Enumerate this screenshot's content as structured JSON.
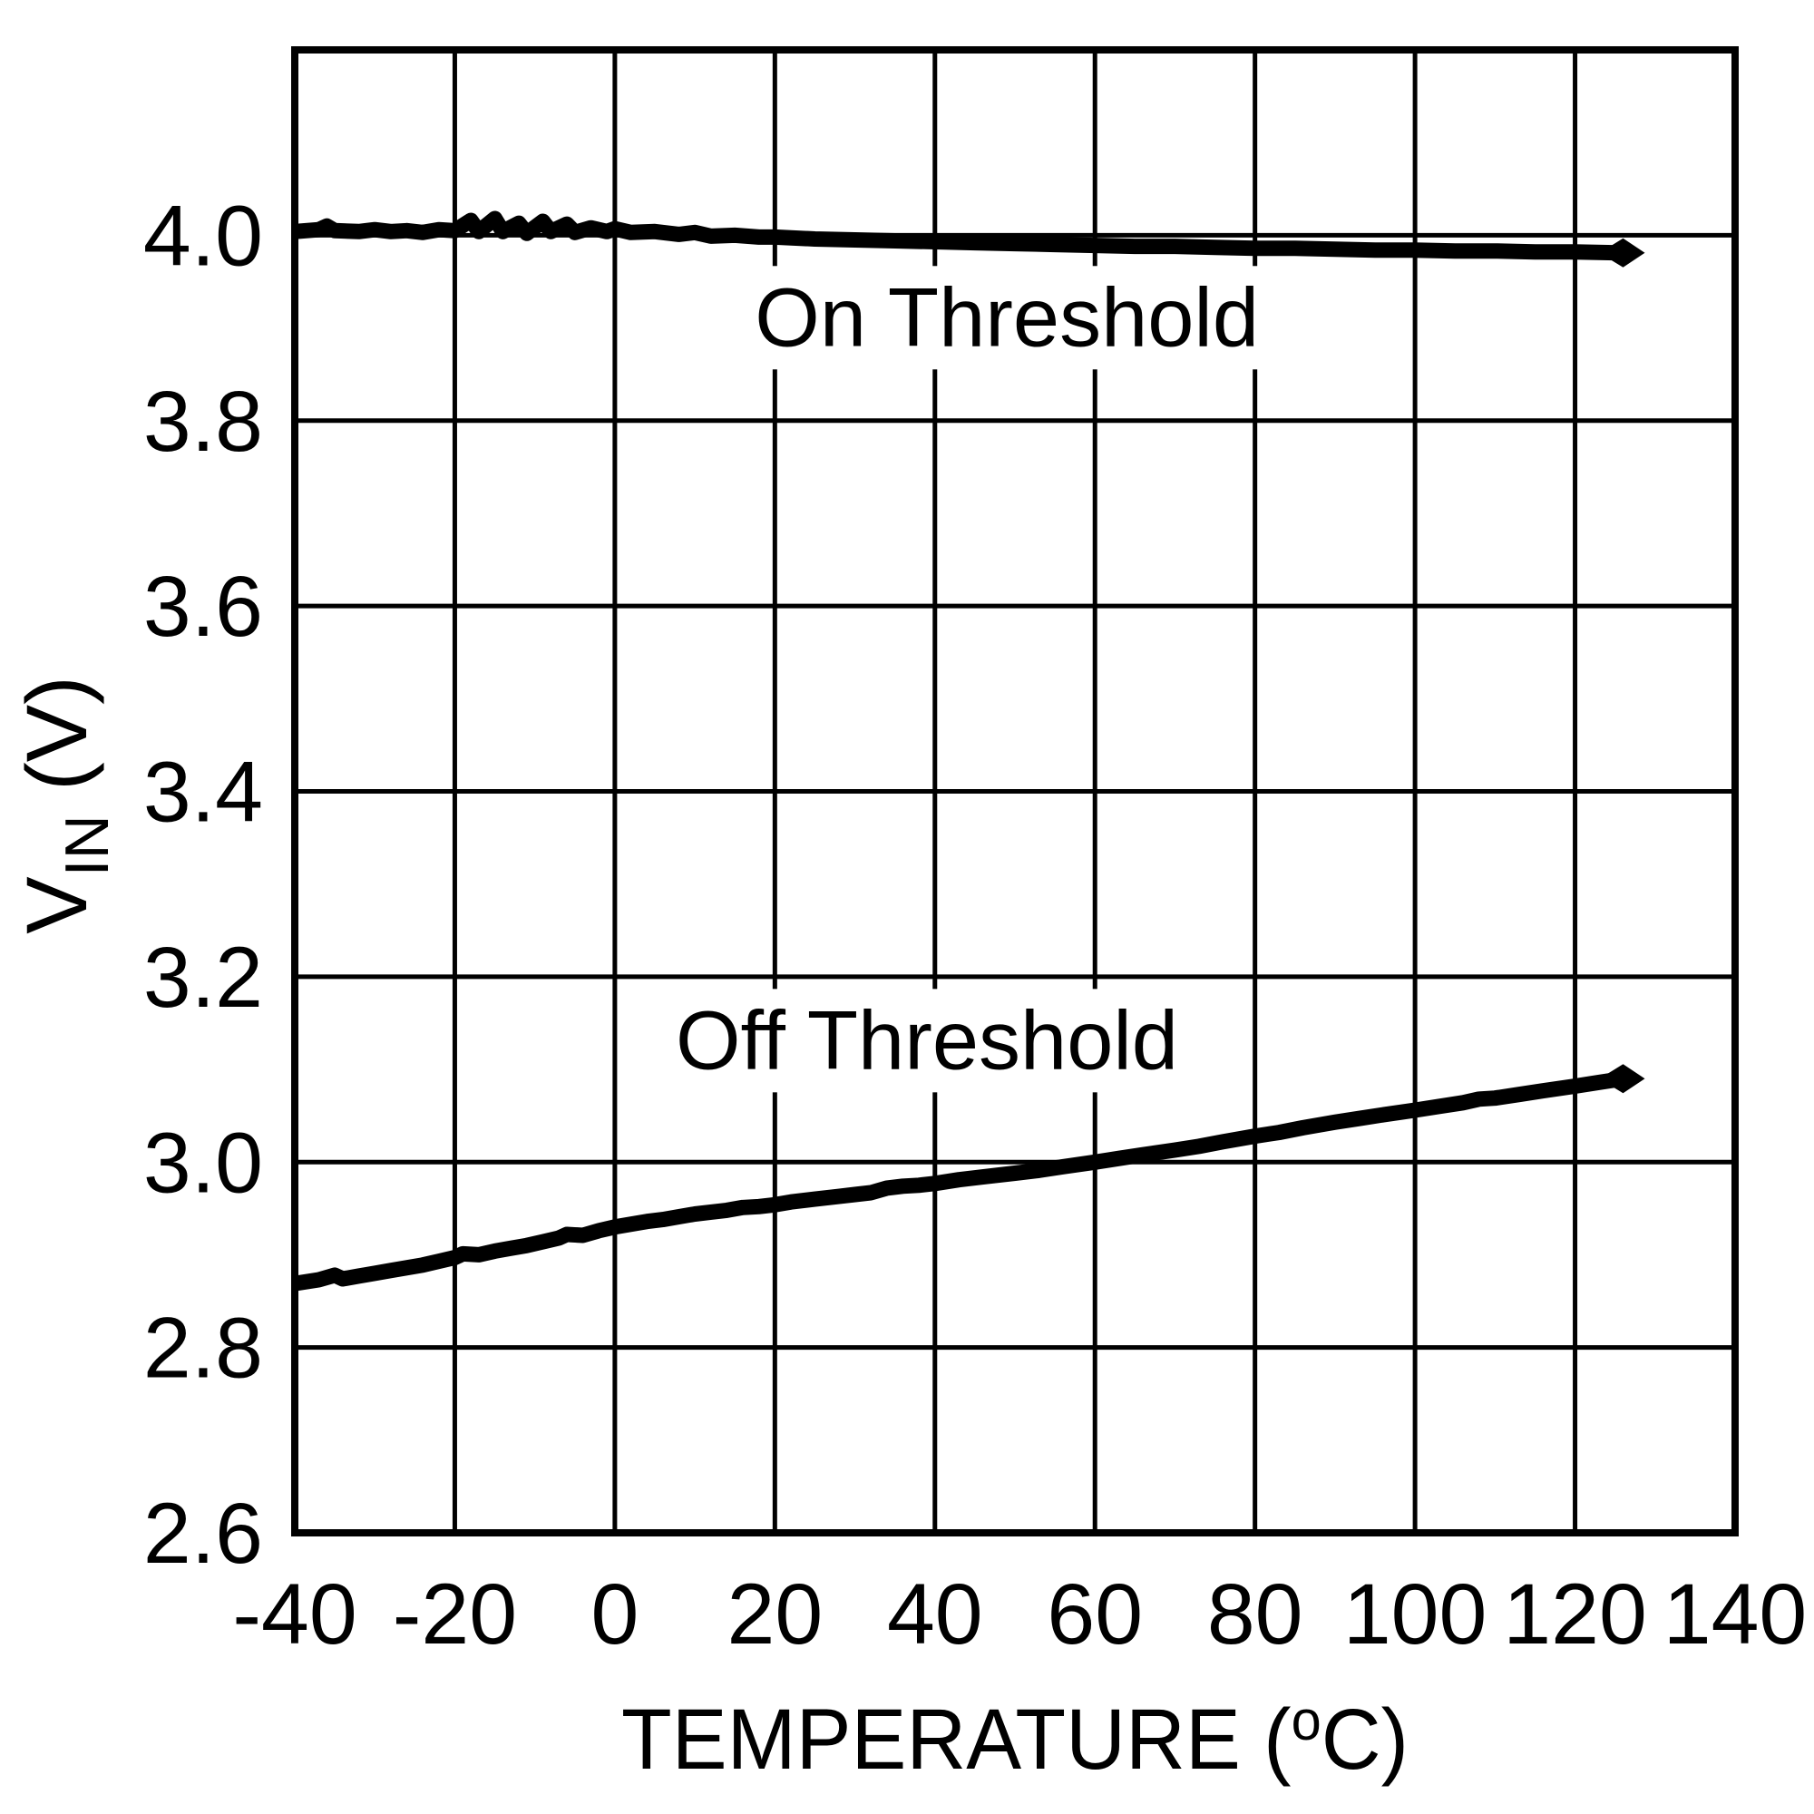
{
  "figure": {
    "background_color": "#ffffff",
    "ink_color": "#000000"
  },
  "chart_data": {
    "type": "line",
    "title": "",
    "xlabel": {
      "text": "TEMPERATURE (oC)",
      "prefix": "TEMPERATURE (",
      "superscript": "o",
      "suffix": "C)"
    },
    "ylabel": {
      "main": "V",
      "subscript": "IN",
      "suffix": " (V)"
    },
    "xlim": [
      -40,
      140
    ],
    "ylim": [
      2.6,
      4.2
    ],
    "grid": true,
    "legend_position": "inline-annotations",
    "xticks": [
      -40,
      -20,
      0,
      20,
      40,
      60,
      80,
      100,
      120,
      140
    ],
    "xtick_labels": [
      "-40",
      "-20",
      "0",
      "20",
      "40",
      "60",
      "80",
      "100",
      "120",
      "140"
    ],
    "yticks": [
      2.6,
      2.8,
      3.0,
      3.2,
      3.4,
      3.6,
      3.8,
      4.0
    ],
    "ytick_labels": [
      "2.6",
      "2.8",
      "3.0",
      "3.2",
      "3.4",
      "3.6",
      "3.8",
      "4.0"
    ],
    "series": [
      {
        "name": "On Threshold",
        "label_anchor": {
          "x": 49,
          "y": 3.913
        },
        "end_marker": "arrow-diamond",
        "points": [
          [
            -40,
            4.004
          ],
          [
            -37,
            4.006
          ],
          [
            -36,
            4.01
          ],
          [
            -35,
            4.005
          ],
          [
            -32,
            4.004
          ],
          [
            -30,
            4.006
          ],
          [
            -28,
            4.004
          ],
          [
            -26,
            4.005
          ],
          [
            -24,
            4.003
          ],
          [
            -22,
            4.006
          ],
          [
            -20,
            4.005
          ],
          [
            -18,
            4.016
          ],
          [
            -17,
            4.004
          ],
          [
            -15,
            4.018
          ],
          [
            -14,
            4.004
          ],
          [
            -12,
            4.013
          ],
          [
            -11,
            4.002
          ],
          [
            -9,
            4.015
          ],
          [
            -8,
            4.004
          ],
          [
            -6,
            4.012
          ],
          [
            -5,
            4.003
          ],
          [
            -3,
            4.008
          ],
          [
            -1,
            4.004
          ],
          [
            0,
            4.007
          ],
          [
            2,
            4.003
          ],
          [
            5,
            4.004
          ],
          [
            8,
            4.001
          ],
          [
            10,
            4.003
          ],
          [
            12,
            3.999
          ],
          [
            15,
            4.0
          ],
          [
            18,
            3.998
          ],
          [
            20,
            3.998
          ],
          [
            25,
            3.996
          ],
          [
            30,
            3.995
          ],
          [
            35,
            3.994
          ],
          [
            40,
            3.993
          ],
          [
            45,
            3.992
          ],
          [
            50,
            3.991
          ],
          [
            55,
            3.99
          ],
          [
            60,
            3.989
          ],
          [
            65,
            3.988
          ],
          [
            70,
            3.988
          ],
          [
            75,
            3.987
          ],
          [
            80,
            3.986
          ],
          [
            85,
            3.986
          ],
          [
            90,
            3.985
          ],
          [
            95,
            3.984
          ],
          [
            100,
            3.984
          ],
          [
            105,
            3.983
          ],
          [
            110,
            3.983
          ],
          [
            115,
            3.982
          ],
          [
            120,
            3.982
          ],
          [
            126,
            3.981
          ]
        ]
      },
      {
        "name": "Off Threshold",
        "label_anchor": {
          "x": 39,
          "y": 3.133
        },
        "end_marker": "arrow-diamond",
        "points": [
          [
            -40,
            2.869
          ],
          [
            -37,
            2.873
          ],
          [
            -35,
            2.878
          ],
          [
            -34,
            2.874
          ],
          [
            -32,
            2.877
          ],
          [
            -30,
            2.88
          ],
          [
            -28,
            2.883
          ],
          [
            -26,
            2.886
          ],
          [
            -24,
            2.889
          ],
          [
            -22,
            2.893
          ],
          [
            -20,
            2.897
          ],
          [
            -19,
            2.901
          ],
          [
            -17,
            2.9
          ],
          [
            -15,
            2.904
          ],
          [
            -13,
            2.907
          ],
          [
            -11,
            2.91
          ],
          [
            -9,
            2.914
          ],
          [
            -7,
            2.918
          ],
          [
            -6,
            2.922
          ],
          [
            -4,
            2.921
          ],
          [
            -2,
            2.926
          ],
          [
            0,
            2.93
          ],
          [
            2,
            2.933
          ],
          [
            4,
            2.936
          ],
          [
            6,
            2.938
          ],
          [
            8,
            2.941
          ],
          [
            10,
            2.944
          ],
          [
            12,
            2.946
          ],
          [
            14,
            2.948
          ],
          [
            16,
            2.951
          ],
          [
            18,
            2.952
          ],
          [
            20,
            2.954
          ],
          [
            22,
            2.957
          ],
          [
            25,
            2.96
          ],
          [
            28,
            2.963
          ],
          [
            30,
            2.965
          ],
          [
            32,
            2.967
          ],
          [
            34,
            2.972
          ],
          [
            36,
            2.974
          ],
          [
            38,
            2.975
          ],
          [
            40,
            2.977
          ],
          [
            43,
            2.981
          ],
          [
            46,
            2.984
          ],
          [
            50,
            2.988
          ],
          [
            53,
            2.991
          ],
          [
            56,
            2.995
          ],
          [
            60,
            3.0
          ],
          [
            63,
            3.004
          ],
          [
            66,
            3.008
          ],
          [
            70,
            3.013
          ],
          [
            73,
            3.017
          ],
          [
            76,
            3.022
          ],
          [
            80,
            3.028
          ],
          [
            83,
            3.032
          ],
          [
            86,
            3.037
          ],
          [
            90,
            3.043
          ],
          [
            93,
            3.047
          ],
          [
            96,
            3.051
          ],
          [
            100,
            3.056
          ],
          [
            103,
            3.06
          ],
          [
            106,
            3.064
          ],
          [
            108,
            3.068
          ],
          [
            110,
            3.069
          ],
          [
            113,
            3.073
          ],
          [
            116,
            3.077
          ],
          [
            120,
            3.082
          ],
          [
            123,
            3.086
          ],
          [
            126,
            3.09
          ]
        ]
      }
    ]
  }
}
